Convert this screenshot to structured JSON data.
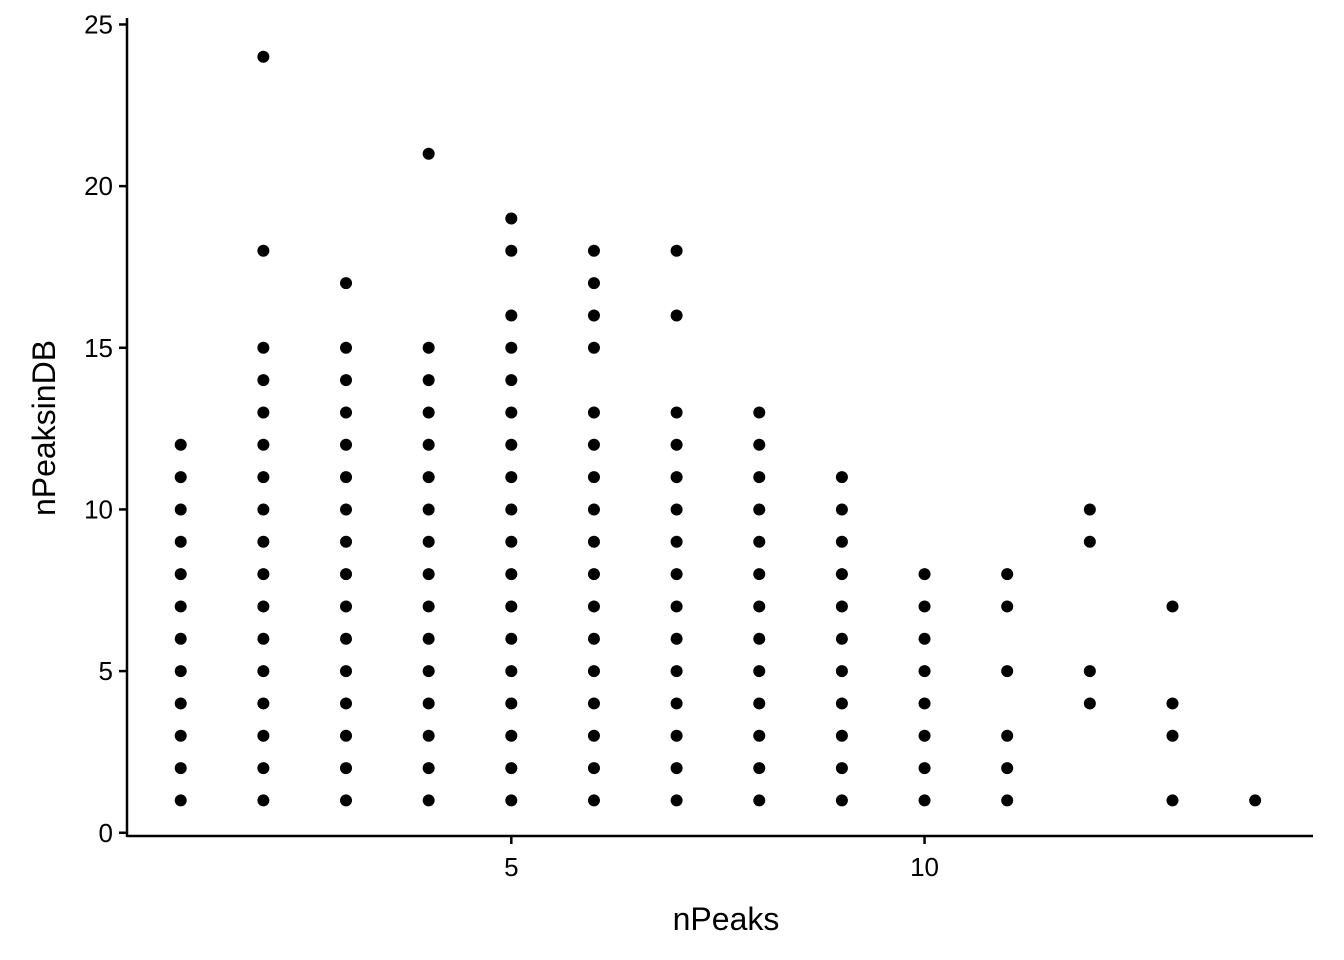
{
  "chart_data": {
    "type": "scatter",
    "title": "",
    "xlabel": "nPeaks",
    "ylabel": "nPeaksinDB",
    "xlim": [
      0.35,
      14.7
    ],
    "ylim": [
      -0.1,
      25.2
    ],
    "xticks": [
      5,
      10
    ],
    "yticks": [
      0,
      5,
      10,
      15,
      20,
      25
    ],
    "grid": false,
    "legend": "none",
    "point_color": "#000000",
    "columns": [
      {
        "x": 1,
        "y": [
          1,
          2,
          3,
          4,
          5,
          6,
          7,
          8,
          9,
          10,
          11,
          12
        ]
      },
      {
        "x": 2,
        "y": [
          1,
          2,
          3,
          4,
          5,
          6,
          7,
          8,
          9,
          10,
          11,
          12,
          13,
          14,
          15,
          18,
          24
        ]
      },
      {
        "x": 3,
        "y": [
          1,
          2,
          3,
          4,
          5,
          6,
          7,
          8,
          9,
          10,
          11,
          12,
          13,
          14,
          15,
          17
        ]
      },
      {
        "x": 4,
        "y": [
          1,
          2,
          3,
          4,
          5,
          6,
          7,
          8,
          9,
          10,
          11,
          12,
          13,
          14,
          15,
          21
        ]
      },
      {
        "x": 5,
        "y": [
          1,
          2,
          3,
          4,
          5,
          6,
          7,
          8,
          9,
          10,
          11,
          12,
          13,
          14,
          15,
          16,
          18,
          19
        ]
      },
      {
        "x": 6,
        "y": [
          1,
          2,
          3,
          4,
          5,
          6,
          7,
          8,
          9,
          10,
          11,
          12,
          13,
          15,
          16,
          17,
          18
        ]
      },
      {
        "x": 7,
        "y": [
          1,
          2,
          3,
          4,
          5,
          6,
          7,
          8,
          9,
          10,
          11,
          12,
          13,
          16,
          18
        ]
      },
      {
        "x": 8,
        "y": [
          1,
          2,
          3,
          4,
          5,
          6,
          7,
          8,
          9,
          10,
          11,
          12,
          13
        ]
      },
      {
        "x": 9,
        "y": [
          1,
          2,
          3,
          4,
          5,
          6,
          7,
          8,
          9,
          10,
          11
        ]
      },
      {
        "x": 10,
        "y": [
          1,
          2,
          3,
          4,
          5,
          6,
          7,
          8
        ]
      },
      {
        "x": 11,
        "y": [
          1,
          2,
          3,
          5,
          7,
          8
        ]
      },
      {
        "x": 12,
        "y": [
          4,
          5,
          9,
          10
        ]
      },
      {
        "x": 13,
        "y": [
          1,
          3,
          4,
          7
        ]
      },
      {
        "x": 14,
        "y": [
          1
        ]
      }
    ]
  }
}
